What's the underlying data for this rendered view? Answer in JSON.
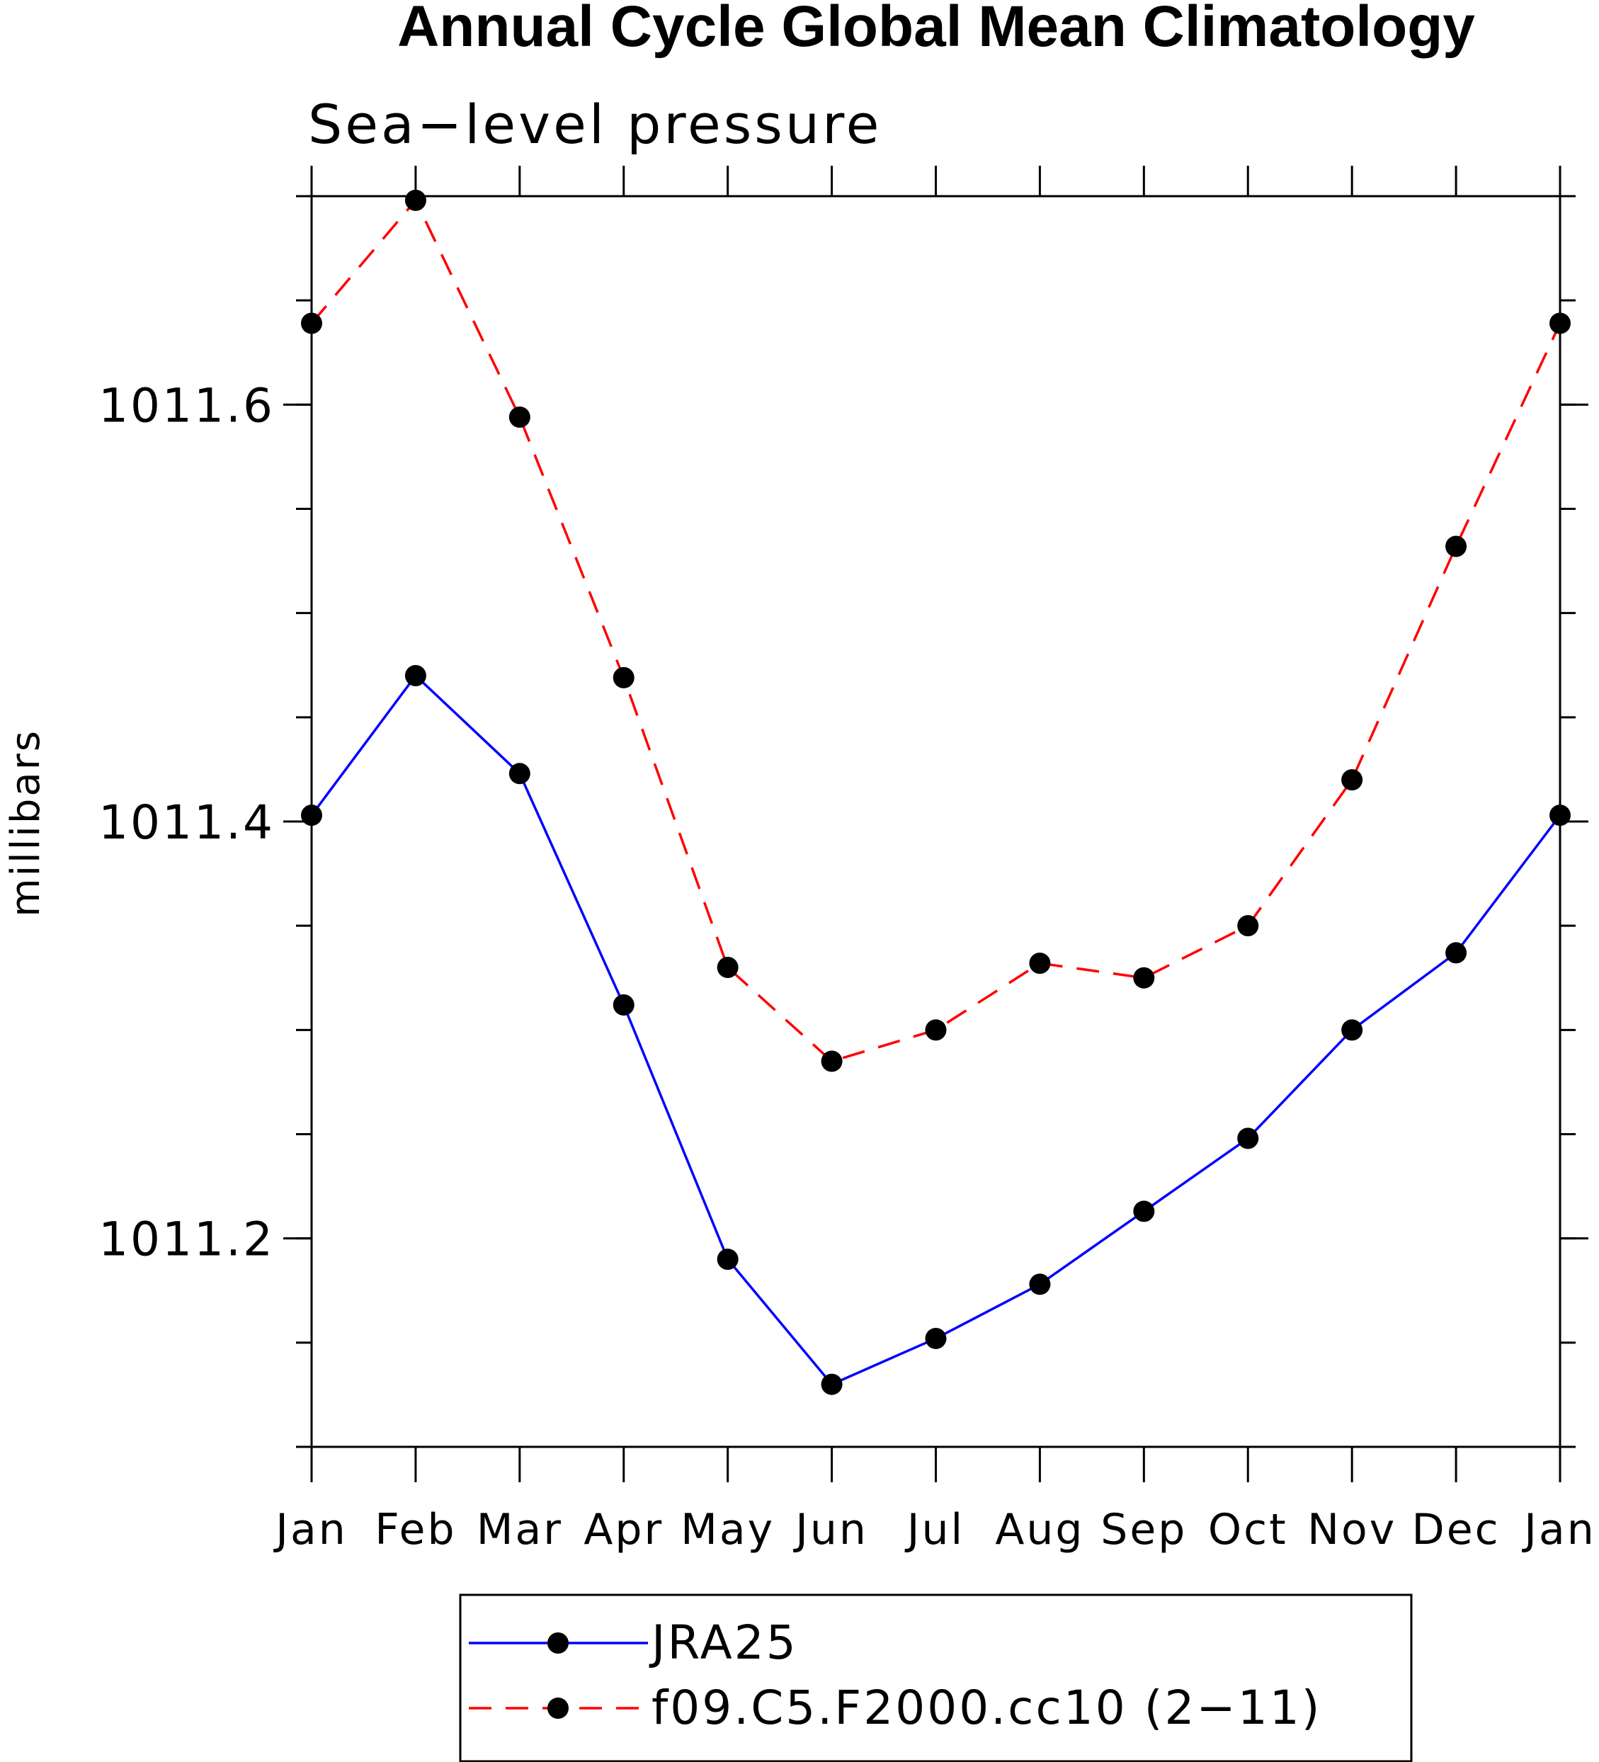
{
  "chart_data": {
    "type": "line",
    "title": "Annual Cycle Global Mean Climatology",
    "subtitle": "Sea−level pressure",
    "ylabel": "millibars",
    "xlabel": "",
    "categories": [
      "Jan",
      "Feb",
      "Mar",
      "Apr",
      "May",
      "Jun",
      "Jul",
      "Aug",
      "Sep",
      "Oct",
      "Nov",
      "Dec",
      "Jan"
    ],
    "ylim": [
      1011.1,
      1011.7
    ],
    "yticks": [
      1011.2,
      1011.4,
      1011.6
    ],
    "ytick_labels": [
      "1011.2",
      "1011.4",
      "1011.6"
    ],
    "y_minor_step": 0.05,
    "grid": false,
    "legend_position": "bottom-center",
    "series": [
      {
        "name": "JRA25",
        "color": "#0000ff",
        "dash": "solid",
        "marker": "filled-circle",
        "values": [
          1011.403,
          1011.47,
          1011.423,
          1011.312,
          1011.19,
          1011.13,
          1011.152,
          1011.178,
          1011.213,
          1011.248,
          1011.3,
          1011.337,
          1011.403
        ]
      },
      {
        "name": "f09.C5.F2000.cc10 (2−11)",
        "color": "#ff0000",
        "dash": "dashed",
        "marker": "filled-circle",
        "values": [
          1011.639,
          1011.698,
          1011.594,
          1011.469,
          1011.33,
          1011.285,
          1011.3,
          1011.332,
          1011.325,
          1011.35,
          1011.42,
          1011.532,
          1011.639
        ]
      }
    ]
  }
}
